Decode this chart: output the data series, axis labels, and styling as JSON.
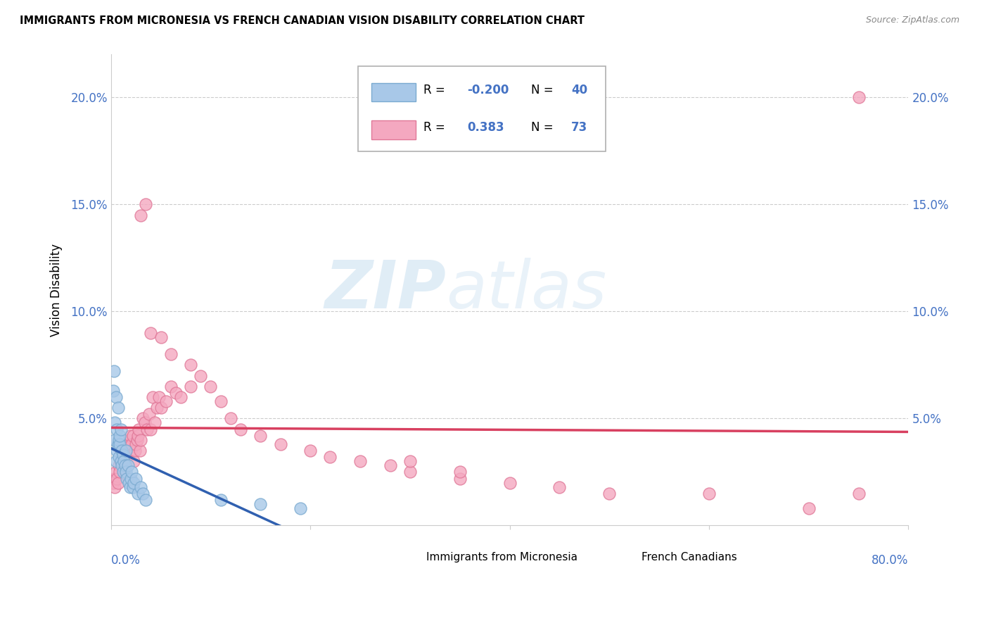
{
  "title": "IMMIGRANTS FROM MICRONESIA VS FRENCH CANADIAN VISION DISABILITY CORRELATION CHART",
  "source": "Source: ZipAtlas.com",
  "ylabel": "Vision Disability",
  "blue_color": "#a8c8e8",
  "pink_color": "#f4a8c0",
  "blue_edge": "#7aaad0",
  "pink_edge": "#e07898",
  "blue_line_color": "#3060b0",
  "pink_line_color": "#d84060",
  "watermark_color": "#c8dff0",
  "legend_box_color": "#ffffff",
  "legend_border_color": "#cccccc",
  "grid_color": "#cccccc",
  "tick_color": "#4472c4",
  "R_blue": -0.2,
  "N_blue": 40,
  "R_pink": 0.383,
  "N_pink": 73,
  "xlim": [
    0.0,
    0.8
  ],
  "ylim": [
    0.0,
    0.22
  ],
  "ytick_values": [
    0.0,
    0.05,
    0.1,
    0.15,
    0.2
  ],
  "ytick_labels": [
    "",
    "5.0%",
    "10.0%",
    "15.0%",
    "20.0%"
  ],
  "blue_scatter_x": [
    0.002,
    0.003,
    0.004,
    0.004,
    0.005,
    0.005,
    0.006,
    0.006,
    0.007,
    0.007,
    0.008,
    0.008,
    0.009,
    0.009,
    0.01,
    0.01,
    0.011,
    0.011,
    0.012,
    0.012,
    0.013,
    0.014,
    0.015,
    0.015,
    0.016,
    0.017,
    0.018,
    0.019,
    0.02,
    0.021,
    0.022,
    0.023,
    0.025,
    0.027,
    0.03,
    0.032,
    0.035,
    0.11,
    0.15,
    0.19
  ],
  "blue_scatter_y": [
    0.063,
    0.072,
    0.048,
    0.04,
    0.03,
    0.06,
    0.035,
    0.045,
    0.055,
    0.038,
    0.032,
    0.04,
    0.038,
    0.042,
    0.03,
    0.045,
    0.028,
    0.035,
    0.025,
    0.033,
    0.03,
    0.028,
    0.025,
    0.035,
    0.022,
    0.028,
    0.02,
    0.018,
    0.022,
    0.025,
    0.018,
    0.02,
    0.022,
    0.015,
    0.018,
    0.015,
    0.012,
    0.012,
    0.01,
    0.008
  ],
  "pink_scatter_x": [
    0.002,
    0.003,
    0.004,
    0.005,
    0.006,
    0.007,
    0.008,
    0.009,
    0.01,
    0.01,
    0.011,
    0.012,
    0.013,
    0.014,
    0.015,
    0.016,
    0.017,
    0.018,
    0.019,
    0.02,
    0.021,
    0.022,
    0.023,
    0.024,
    0.025,
    0.026,
    0.027,
    0.028,
    0.029,
    0.03,
    0.032,
    0.034,
    0.036,
    0.038,
    0.04,
    0.042,
    0.044,
    0.046,
    0.048,
    0.05,
    0.055,
    0.06,
    0.065,
    0.07,
    0.08,
    0.09,
    0.1,
    0.11,
    0.12,
    0.13,
    0.15,
    0.17,
    0.2,
    0.22,
    0.25,
    0.28,
    0.3,
    0.35,
    0.4,
    0.45,
    0.5,
    0.6,
    0.7,
    0.75,
    0.3,
    0.35,
    0.04,
    0.05,
    0.06,
    0.08,
    0.03,
    0.035,
    0.75
  ],
  "pink_scatter_y": [
    0.02,
    0.022,
    0.018,
    0.025,
    0.022,
    0.02,
    0.028,
    0.025,
    0.03,
    0.035,
    0.038,
    0.032,
    0.025,
    0.028,
    0.03,
    0.035,
    0.038,
    0.04,
    0.042,
    0.035,
    0.038,
    0.042,
    0.03,
    0.035,
    0.038,
    0.04,
    0.042,
    0.045,
    0.035,
    0.04,
    0.05,
    0.048,
    0.045,
    0.052,
    0.045,
    0.06,
    0.048,
    0.055,
    0.06,
    0.055,
    0.058,
    0.065,
    0.062,
    0.06,
    0.065,
    0.07,
    0.065,
    0.058,
    0.05,
    0.045,
    0.042,
    0.038,
    0.035,
    0.032,
    0.03,
    0.028,
    0.025,
    0.022,
    0.02,
    0.018,
    0.015,
    0.015,
    0.008,
    0.2,
    0.03,
    0.025,
    0.09,
    0.088,
    0.08,
    0.075,
    0.145,
    0.15,
    0.015
  ]
}
